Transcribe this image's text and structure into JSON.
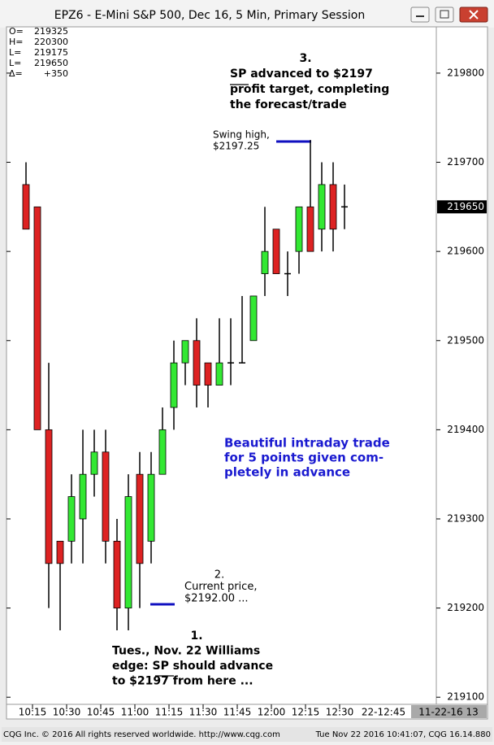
{
  "window_title": "EPZ6 - E-Mini S&P 500, Dec 16, 5 Min, Primary Session",
  "footer": {
    "left": "CQG Inc. © 2016 All rights reserved worldwide. http://www.cqg.com",
    "right": "Tue Nov 22 2016 10:41:07, CQG 16.14.880"
  },
  "chart_data": {
    "type": "candlestick",
    "summary": [
      {
        "label": "O=",
        "value": 219325
      },
      {
        "label": "H=",
        "value": 220300
      },
      {
        "label": "L=",
        "value": 219175
      },
      {
        "label": "L=",
        "value": 219650
      },
      {
        "label": "Δ=",
        "value": {
          "value": 350,
          "label": "+350"
        }
      }
    ],
    "categories": [
      null,
      "10:15",
      null,
      null,
      "10:30",
      null,
      null,
      "10:45",
      null,
      null,
      "11:00",
      null,
      null,
      "11:15",
      null,
      null,
      "11:30",
      null,
      null,
      "11:45",
      null,
      null,
      "12:00",
      null,
      null,
      "12:15",
      null,
      null,
      "12:30"
    ],
    "x_extra_labels": [
      "22-12:45",
      "11-22-16 13"
    ],
    "open": [
      219675,
      219650,
      219400,
      219275,
      219275,
      219300,
      219350,
      219375,
      219275,
      219200,
      219350,
      219275,
      219350,
      219425,
      219475,
      219500,
      219475,
      219450,
      219475,
      219475,
      219500,
      219575,
      219625,
      219575,
      219600,
      219650,
      219625,
      219675,
      219650
    ],
    "high": [
      219700,
      219650,
      219475,
      219275,
      219350,
      219400,
      219400,
      219400,
      219300,
      219350,
      219375,
      219375,
      219425,
      219500,
      219500,
      219525,
      219475,
      219525,
      219525,
      219550,
      219550,
      219650,
      219625,
      219600,
      219650,
      219725,
      219700,
      219700,
      219675
    ],
    "low": [
      219625,
      219400,
      219200,
      219175,
      219250,
      219250,
      219325,
      219250,
      219175,
      219175,
      219200,
      219250,
      219350,
      219400,
      219450,
      219425,
      219425,
      219450,
      219450,
      219475,
      219500,
      219550,
      219575,
      219550,
      219575,
      219600,
      219600,
      219600,
      219625
    ],
    "close": [
      219625,
      219400,
      219250,
      219250,
      219325,
      219350,
      219375,
      219275,
      219200,
      219325,
      219250,
      219350,
      219400,
      219475,
      219500,
      219450,
      219450,
      219475,
      219475,
      219475,
      219550,
      219600,
      219575,
      219575,
      219650,
      219600,
      219675,
      219625,
      219650
    ],
    "up_color": "#33e833",
    "down_color": "#dd2222",
    "ylim": [
      219092,
      219851
    ],
    "yticks": [
      219100,
      219200,
      219300,
      219400,
      219500,
      219600,
      219700,
      219800
    ],
    "last_price": 219650,
    "grid": true,
    "annotations": [
      {
        "lines": [
          "3.",
          "SP advanced to $2197",
          "profit target, completing",
          "the forecast/trade"
        ]
      },
      {
        "lines": [
          "Swing high,",
          "$2197.25"
        ]
      },
      {
        "lines": [
          "Beautiful intraday trade",
          "for 5 points given com-",
          "pletely in advance"
        ]
      },
      {
        "lines": [
          "2.",
          "Current price,",
          "$2192.00 ..."
        ]
      },
      {
        "lines": [
          "1.",
          "Tues., Nov. 22 Williams",
          "edge: SP should advance",
          "to $2197 from here ..."
        ]
      }
    ]
  }
}
